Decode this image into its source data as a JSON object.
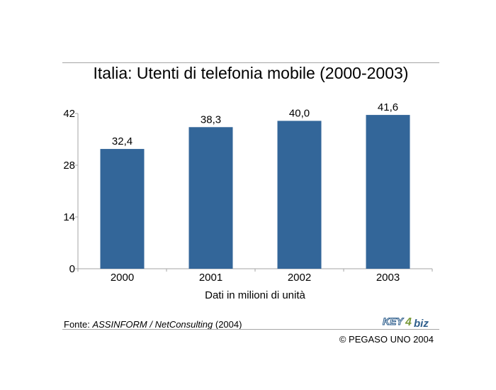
{
  "page": {
    "title": "Italia: Utenti di telefonia mobile (2000-2003)",
    "source_prefix": "Fonte: ",
    "source_italic": "ASSINFORM / NetConsulting",
    "source_suffix": " (2004)",
    "copyright": "© PEGASO UNO 2004",
    "logo_text_left": "KEY",
    "logo_text_num": "4",
    "logo_text_right": "biz"
  },
  "colors": {
    "bar": "#336699",
    "axis": "#a6a6a6",
    "logo_blue": "#2e5e8c",
    "logo_green": "#7a9a3a"
  },
  "chart_data": {
    "type": "bar",
    "title": "Italia: Utenti di telefonia mobile (2000-2003)",
    "categories": [
      "2000",
      "2001",
      "2002",
      "2003"
    ],
    "values": [
      32.4,
      38.3,
      40.0,
      41.6
    ],
    "value_labels": [
      "32,4",
      "38,3",
      "40,0",
      "41,6"
    ],
    "xlabel": "Dati in milioni di unità",
    "ylabel": "",
    "ylim": [
      0,
      42
    ],
    "yticks": [
      0,
      14,
      28,
      42
    ],
    "grid": false,
    "legend": "none"
  }
}
